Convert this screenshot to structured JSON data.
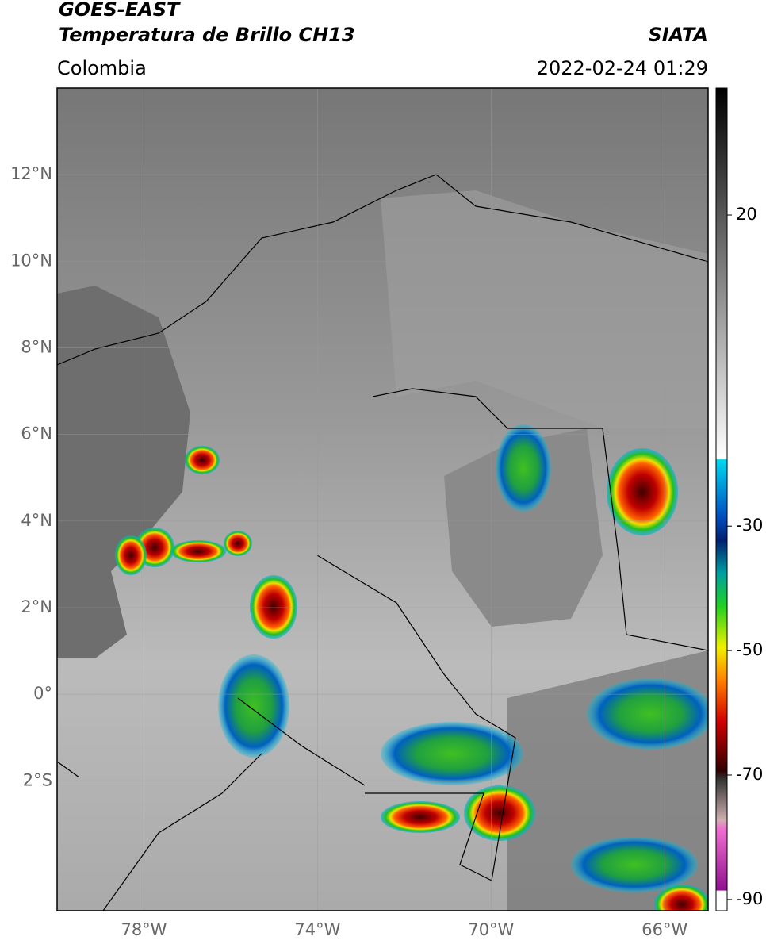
{
  "header": {
    "title_lines": [
      "GOES-EAST",
      "Temperatura de Brillo CH13"
    ],
    "agency": "SIATA",
    "region": "Colombia",
    "datetime": "2022-02-24 01:29"
  },
  "map": {
    "lonlim": [
      -80,
      -65
    ],
    "latlim": [
      -5,
      14
    ],
    "grid": true,
    "lat_ticks": [
      {
        "value": 12,
        "label": "12°N"
      },
      {
        "value": 10,
        "label": "10°N"
      },
      {
        "value": 8,
        "label": "8°N"
      },
      {
        "value": 6,
        "label": "6°N"
      },
      {
        "value": 4,
        "label": "4°N"
      },
      {
        "value": 2,
        "label": "2°N"
      },
      {
        "value": 0,
        "label": "0°"
      },
      {
        "value": -2,
        "label": "2°S"
      }
    ],
    "lon_ticks": [
      {
        "value": -78,
        "label": "78°W"
      },
      {
        "value": -74,
        "label": "74°W"
      },
      {
        "value": -70,
        "label": "70°W"
      },
      {
        "value": -66,
        "label": "66°W"
      }
    ]
  },
  "colorbar": {
    "lim": [
      40.4,
      -91.8
    ],
    "ticks": [
      20,
      -30,
      -50,
      -70,
      -90
    ]
  }
}
